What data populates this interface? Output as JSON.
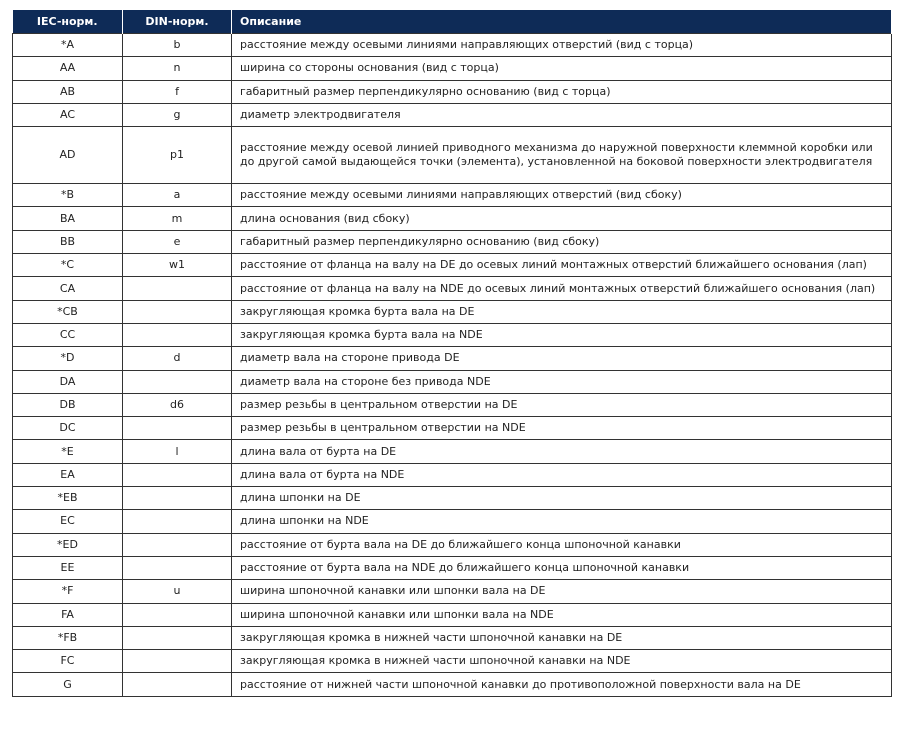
{
  "header": {
    "iec": "IEC-норм.",
    "din": "DIN-норм.",
    "desc": "Описание"
  },
  "header_color": "#0e2b57",
  "rows": [
    {
      "iec": "*A",
      "din": "b",
      "desc": "расстояние между осевыми линиями направляющих отверстий (вид с торца)"
    },
    {
      "iec": "AA",
      "din": "n",
      "desc": "ширина со стороны основания (вид с торца)"
    },
    {
      "iec": "AB",
      "din": "f",
      "desc": "габаритный размер перпендикулярно основанию (вид с торца)"
    },
    {
      "iec": "AC",
      "din": "g",
      "desc": "диаметр электродвигателя"
    },
    {
      "iec": "AD",
      "din": "p1",
      "desc": "расстояние между осевой линией приводного механизма до наружной поверхности клеммной коробки или до другой самой выдающейся точки (элемента), установленной на боковой поверхности электродвигателя"
    },
    {
      "iec": "*B",
      "din": "a",
      "desc": "расстояние между осевыми линиями направляющих отверстий (вид сбоку)"
    },
    {
      "iec": "BA",
      "din": "m",
      "desc": "длина основания (вид сбоку)"
    },
    {
      "iec": "BB",
      "din": "e",
      "desc": "габаритный размер перпендикулярно основанию (вид сбоку)"
    },
    {
      "iec": "*C",
      "din": "w1",
      "desc": "расстояние от фланца на валу на DE до осевых линий монтажных отверстий ближайшего основания (лап)"
    },
    {
      "iec": "CA",
      "din": "",
      "desc": "расстояние от фланца на валу на NDE до осевых линий монтажных отверстий ближайшего основания (лап)"
    },
    {
      "iec": "*CB",
      "din": "",
      "desc": "закругляющая кромка бурта вала на DE"
    },
    {
      "iec": "CC",
      "din": "",
      "desc": "закругляющая кромка бурта вала на NDE"
    },
    {
      "iec": "*D",
      "din": "d",
      "desc": "диаметр вала на стороне привода DE"
    },
    {
      "iec": "DA",
      "din": "",
      "desc": "диаметр вала на стороне без привода NDE"
    },
    {
      "iec": "DB",
      "din": "d6",
      "desc": "размер резьбы в центральном отверстии на DE"
    },
    {
      "iec": "DC",
      "din": "",
      "desc": "размер резьбы в центральном отверстии на NDE"
    },
    {
      "iec": "*E",
      "din": "l",
      "desc": "длина вала от бурта на DE"
    },
    {
      "iec": "EA",
      "din": "",
      "desc": "длина вала от бурта на NDE"
    },
    {
      "iec": "*EB",
      "din": "",
      "desc": "длина шпонки на DE"
    },
    {
      "iec": "EC",
      "din": "",
      "desc": "длина шпонки на NDE"
    },
    {
      "iec": "*ED",
      "din": "",
      "desc": "расстояние от бурта вала на DE до ближайшего конца шпоночной канавки"
    },
    {
      "iec": "EE",
      "din": "",
      "desc": "расстояние от бурта вала на NDE до ближайшего конца шпоночной канавки"
    },
    {
      "iec": "*F",
      "din": "u",
      "desc": "ширина шпоночной канавки или шпонки вала на DE"
    },
    {
      "iec": "FA",
      "din": "",
      "desc": "ширина шпоночной канавки или шпонки вала на NDE"
    },
    {
      "iec": "*FB",
      "din": "",
      "desc": "закругляющая кромка в нижней части шпоночной канавки на DE"
    },
    {
      "iec": "FC",
      "din": "",
      "desc": "закругляющая кромка в нижней части шпоночной канавки на NDE"
    },
    {
      "iec": "G",
      "din": "",
      "desc": "расстояние от нижней части шпоночной канавки до противоположной поверхности вала на DE"
    }
  ]
}
